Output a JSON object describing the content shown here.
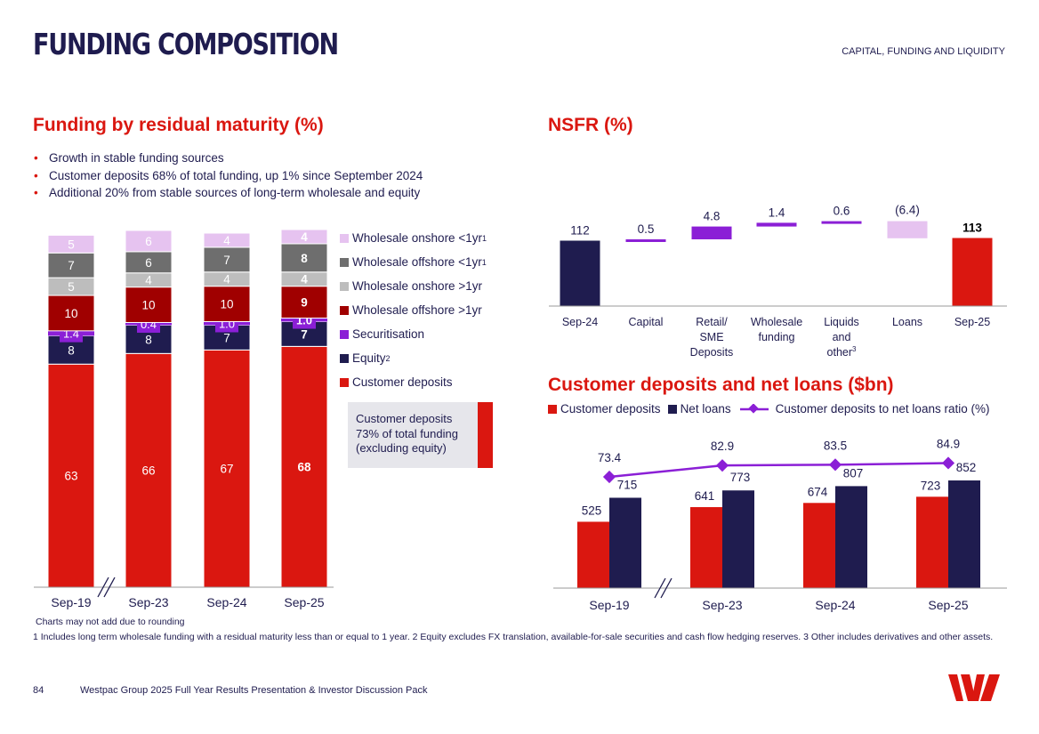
{
  "page": {
    "title": "FUNDING COMPOSITION",
    "section": "CAPITAL, FUNDING AND LIQUIDITY",
    "page_number": "84",
    "footer_text": "Westpac Group 2025 Full Year Results Presentation & Investor Discussion Pack",
    "footnote_rounding": "Charts may not add due to rounding",
    "footnotes": "1 Includes long term wholesale funding with a residual maturity less than or equal to 1 year. 2 Equity excludes FX translation, available-for-sale securities and cash flow hedging reserves. 3 Other includes derivatives and other assets."
  },
  "left": {
    "heading": "Funding by residual maturity (%)",
    "bullets": [
      "Growth in stable funding sources",
      "Customer deposits 68% of total funding, up 1% since September 2024",
      "Additional 20% from stable sources of long-term wholesale and equity"
    ],
    "legend": [
      {
        "label": "Wholesale onshore <1yr",
        "sup": "1",
        "color": "#e6c3f0"
      },
      {
        "label": "Wholesale offshore <1yr",
        "sup": "1",
        "color": "#6e6e6e"
      },
      {
        "label": "Wholesale onshore >1yr",
        "sup": "",
        "color": "#bdbdbd"
      },
      {
        "label": "Wholesale offshore >1yr",
        "sup": "",
        "color": "#a00000"
      },
      {
        "label": "Securitisation",
        "sup": "",
        "color": "#8b1fd6"
      },
      {
        "label": "Equity",
        "sup": "2",
        "color": "#1f1c4f"
      },
      {
        "label": "Customer deposits",
        "sup": "",
        "color": "#da1710"
      }
    ],
    "callout": "Customer deposits 73% of total funding (excluding equity)"
  },
  "right_top": {
    "heading": "NSFR (%)"
  },
  "right_bottom": {
    "heading": "Customer deposits and net loans ($bn)",
    "legend": [
      {
        "label": "Customer deposits",
        "color": "#da1710"
      },
      {
        "label": "Net loans",
        "color": "#1f1c4f"
      },
      {
        "label": "Customer deposits to net loans ratio (%)",
        "color": "#8b1fd6"
      }
    ]
  },
  "chart_data": [
    {
      "type": "bar",
      "stacked": true,
      "title": "Funding by residual maturity (%)",
      "categories": [
        "Sep-19",
        "Sep-23",
        "Sep-24",
        "Sep-25"
      ],
      "series": [
        {
          "name": "Customer deposits",
          "values": [
            63,
            66,
            67,
            68
          ],
          "color": "#da1710"
        },
        {
          "name": "Equity",
          "values": [
            8,
            8,
            7,
            7
          ],
          "color": "#1f1c4f"
        },
        {
          "name": "Securitisation",
          "values": [
            1.4,
            0.4,
            1.0,
            1.0
          ],
          "color": "#8b1fd6"
        },
        {
          "name": "Wholesale offshore >1yr",
          "values": [
            10,
            10,
            10,
            9
          ],
          "color": "#a00000"
        },
        {
          "name": "Wholesale onshore >1yr",
          "values": [
            5,
            4,
            4,
            4
          ],
          "color": "#bdbdbd"
        },
        {
          "name": "Wholesale offshore <1yr",
          "values": [
            7,
            6,
            7,
            8
          ],
          "color": "#6e6e6e"
        },
        {
          "name": "Wholesale onshore <1yr",
          "values": [
            5,
            6,
            4,
            4
          ],
          "color": "#e6c3f0"
        }
      ],
      "value_labels": [
        [
          "63",
          "66",
          "67",
          "68"
        ],
        [
          "8",
          "8",
          "7",
          "7"
        ],
        [
          "1.4",
          "0.4",
          "1.0",
          "1.0"
        ],
        [
          "10",
          "10",
          "10",
          "9"
        ],
        [
          "5",
          "4",
          "4",
          "4"
        ],
        [
          "7",
          "6",
          "7",
          "8"
        ],
        [
          "5",
          "6",
          "4",
          "4"
        ]
      ],
      "axis_break_after": "Sep-19",
      "ylim": [
        0,
        100
      ]
    },
    {
      "type": "bar",
      "subtype": "waterfall",
      "title": "NSFR (%)",
      "categories": [
        "Sep-24",
        "Capital",
        "Retail/\nSME\nDeposits",
        "Wholesale\nfunding",
        "Liquids\nand\nother",
        "Loans",
        "Sep-25"
      ],
      "category_sups": [
        "",
        "",
        "",
        "",
        "3",
        "",
        ""
      ],
      "values": [
        112,
        0.5,
        4.8,
        1.4,
        0.6,
        -6.4,
        113
      ],
      "value_labels": [
        "112",
        "0.5",
        "4.8",
        "1.4",
        "0.6",
        "(6.4)",
        "113"
      ],
      "kinds": [
        "total",
        "delta",
        "delta",
        "delta",
        "delta",
        "delta",
        "total"
      ],
      "colors": [
        "#1f1c4f",
        "#8b1fd6",
        "#8b1fd6",
        "#8b1fd6",
        "#8b1fd6",
        "#e6c3f0",
        "#da1710"
      ],
      "ylim": [
        60,
        125
      ]
    },
    {
      "type": "bar",
      "title": "Customer deposits and net loans ($bn)",
      "categories": [
        "Sep-19",
        "Sep-23",
        "Sep-24",
        "Sep-25"
      ],
      "series": [
        {
          "name": "Customer deposits",
          "values": [
            525,
            641,
            674,
            723
          ],
          "color": "#da1710"
        },
        {
          "name": "Net loans",
          "values": [
            715,
            773,
            807,
            852
          ],
          "color": "#1f1c4f"
        }
      ],
      "line": {
        "name": "Customer deposits to net loans ratio (%)",
        "values": [
          73.4,
          82.9,
          83.5,
          84.9
        ],
        "labels": [
          "73.4",
          "82.9",
          "83.5",
          "84.9"
        ],
        "color": "#8b1fd6"
      },
      "axis_break_after": "Sep-19",
      "ylim": [
        0,
        1250
      ]
    }
  ]
}
